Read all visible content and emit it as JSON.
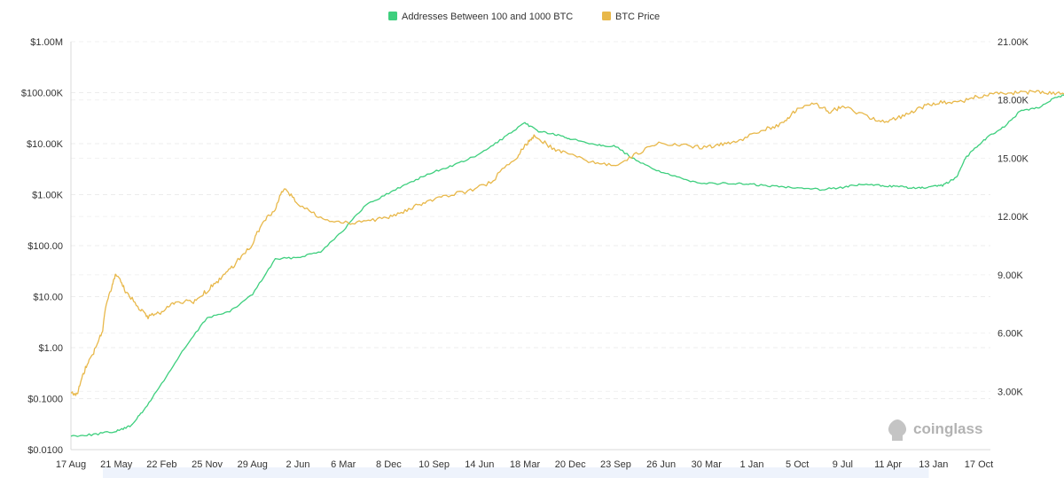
{
  "chart_data": {
    "type": "line",
    "legend": {
      "placement": "top-center"
    },
    "grid": {
      "horizontal": true,
      "vertical": false,
      "style": "dashed"
    },
    "x": [
      "17 Aug",
      "21 May",
      "22 Feb",
      "25 Nov",
      "29 Aug",
      "2 Jun",
      "6 Mar",
      "8 Dec",
      "10 Sep",
      "14 Jun",
      "18 Mar",
      "20 Dec",
      "23 Sep",
      "26 Jun",
      "30 Mar",
      "1 Jan",
      "5 Oct",
      "9 Jul",
      "11 Apr",
      "13 Jan",
      "17 Oct"
    ],
    "x_end_index": 19.6,
    "y_left": {
      "scale": "log",
      "range": [
        0.01,
        1000000
      ],
      "ticks": [
        0.01,
        0.1,
        1,
        10,
        100,
        1000,
        10000,
        100000,
        1000000
      ],
      "tick_labels": [
        "$0.0100",
        "$0.1000",
        "$1.00",
        "$10.00",
        "$100.00",
        "$1.00K",
        "$10.00K",
        "$100.00K",
        "$1.00M"
      ]
    },
    "y_right": {
      "scale": "linear",
      "range": [
        0,
        21000
      ],
      "ticks": [
        3000,
        6000,
        9000,
        12000,
        15000,
        18000,
        21000
      ],
      "tick_labels": [
        "3.00K",
        "6.00K",
        "9.00K",
        "12.00K",
        "15.00K",
        "18.00K",
        "21.00K"
      ]
    },
    "series": [
      {
        "name": "Addresses Between 100 and 1000 BTC",
        "color": "#3ecf7e",
        "axis": "right",
        "points": [
          [
            0,
            700
          ],
          [
            0.5,
            780
          ],
          [
            1,
            950
          ],
          [
            1.3,
            1200
          ],
          [
            1.6,
            2000
          ],
          [
            2,
            3400
          ],
          [
            2.5,
            5200
          ],
          [
            3,
            6800
          ],
          [
            3.5,
            7100
          ],
          [
            4,
            8000
          ],
          [
            4.5,
            9800
          ],
          [
            5,
            9900
          ],
          [
            5.5,
            10200
          ],
          [
            6,
            11300
          ],
          [
            6.5,
            12600
          ],
          [
            7,
            13200
          ],
          [
            7.5,
            13800
          ],
          [
            8,
            14300
          ],
          [
            8.5,
            14700
          ],
          [
            9,
            15200
          ],
          [
            9.5,
            16000
          ],
          [
            10,
            16800
          ],
          [
            10.3,
            16400
          ],
          [
            10.7,
            16200
          ],
          [
            11,
            16000
          ],
          [
            11.6,
            15700
          ],
          [
            12,
            15600
          ],
          [
            12.5,
            14800
          ],
          [
            13,
            14300
          ],
          [
            13.5,
            13900
          ],
          [
            14,
            13700
          ],
          [
            14.6,
            13700
          ],
          [
            15,
            13650
          ],
          [
            15.5,
            13550
          ],
          [
            16,
            13500
          ],
          [
            16.5,
            13400
          ],
          [
            17,
            13500
          ],
          [
            17.4,
            13650
          ],
          [
            17.8,
            13600
          ],
          [
            18.2,
            13550
          ],
          [
            18.6,
            13450
          ],
          [
            18.9,
            13500
          ],
          [
            19.2,
            13600
          ],
          [
            19.5,
            14000
          ],
          [
            19.7,
            15000
          ],
          [
            19.9,
            15500
          ],
          [
            20.2,
            16100
          ],
          [
            20.6,
            16700
          ],
          [
            20.9,
            17400
          ],
          [
            21.3,
            17600
          ],
          [
            21.6,
            18000
          ],
          [
            22,
            18400
          ]
        ]
      },
      {
        "name": "BTC Price",
        "color": "#e8b84a",
        "axis": "left",
        "points": [
          [
            0,
            0.13
          ],
          [
            0.15,
            0.12
          ],
          [
            0.3,
            0.35
          ],
          [
            0.5,
            0.8
          ],
          [
            0.7,
            2
          ],
          [
            0.9,
            15
          ],
          [
            1,
            28
          ],
          [
            1.2,
            12
          ],
          [
            1.5,
            6
          ],
          [
            1.7,
            4
          ],
          [
            2,
            5
          ],
          [
            2.3,
            8
          ],
          [
            2.7,
            8
          ],
          [
            3,
            13
          ],
          [
            3.3,
            22
          ],
          [
            3.6,
            40
          ],
          [
            4,
            100
          ],
          [
            4.2,
            250
          ],
          [
            4.5,
            500
          ],
          [
            4.7,
            1300
          ],
          [
            5,
            600
          ],
          [
            5.5,
            350
          ],
          [
            6,
            280
          ],
          [
            6.5,
            300
          ],
          [
            7,
            350
          ],
          [
            7.4,
            500
          ],
          [
            7.8,
            700
          ],
          [
            8.2,
            900
          ],
          [
            8.8,
            1200
          ],
          [
            9.3,
            1800
          ],
          [
            9.8,
            5000
          ],
          [
            10,
            9000
          ],
          [
            10.2,
            14000
          ],
          [
            10.6,
            8000
          ],
          [
            11,
            6000
          ],
          [
            11.5,
            4200
          ],
          [
            12,
            3700
          ],
          [
            12.5,
            6500
          ],
          [
            13,
            10500
          ],
          [
            13.5,
            9200
          ],
          [
            14,
            8300
          ],
          [
            14.4,
            10000
          ],
          [
            14.8,
            12000
          ],
          [
            15.3,
            19000
          ],
          [
            15.7,
            25000
          ],
          [
            16,
            48000
          ],
          [
            16.4,
            60000
          ],
          [
            16.7,
            42000
          ],
          [
            17,
            52000
          ],
          [
            17.6,
            32000
          ],
          [
            18,
            27000
          ],
          [
            18.4,
            37000
          ],
          [
            18.8,
            54000
          ],
          [
            19.2,
            65000
          ],
          [
            19.6,
            66000
          ],
          [
            20,
            85000
          ],
          [
            20.4,
            98000
          ],
          [
            20.8,
            100000
          ],
          [
            21.2,
            103000
          ],
          [
            21.6,
            97000
          ],
          [
            22,
            96000
          ]
        ]
      }
    ]
  },
  "watermark": {
    "text": "coinglass"
  }
}
